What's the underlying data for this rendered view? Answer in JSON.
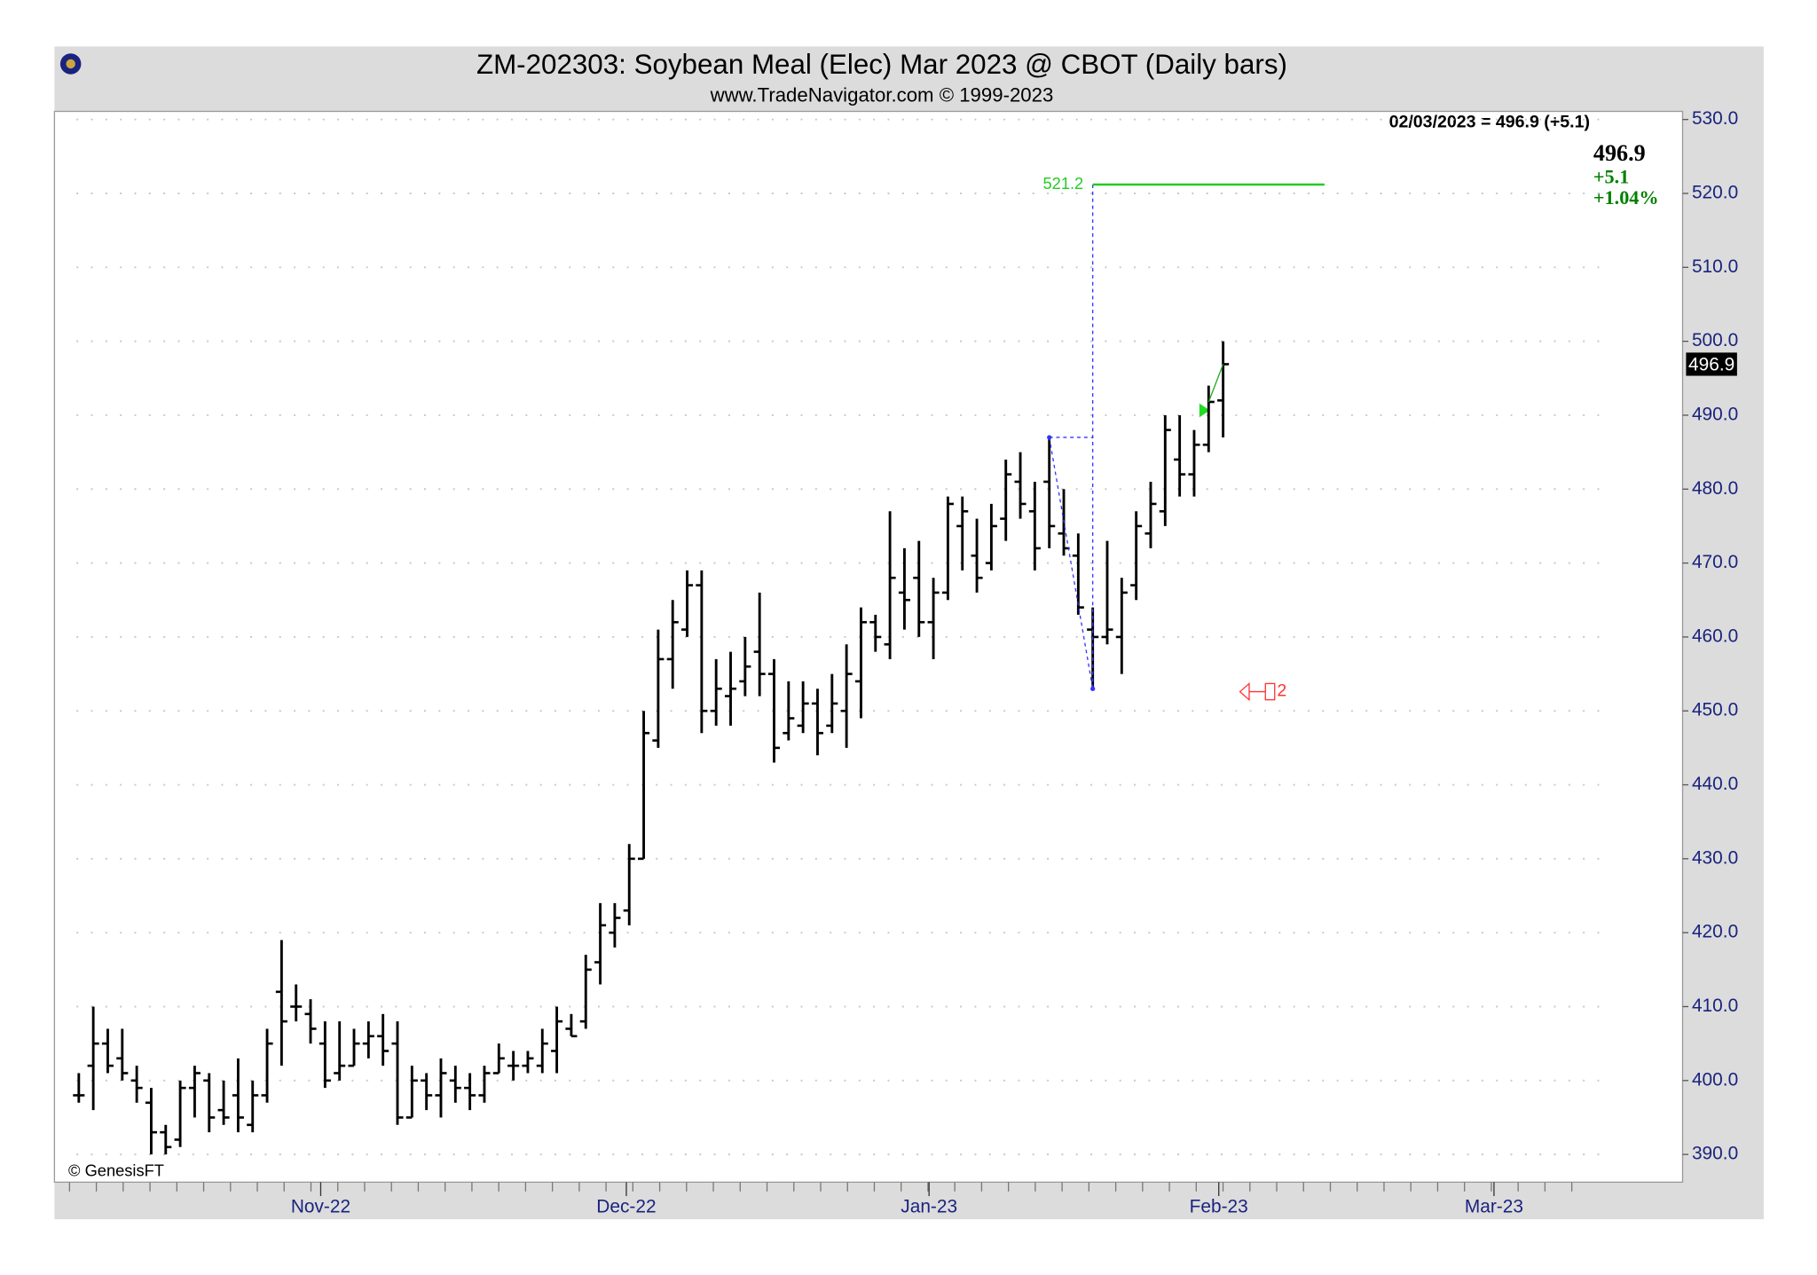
{
  "chart_data": {
    "type": "ohlc",
    "title": "ZM-202303:  Soybean Meal (Elec) Mar 2023 @ CBOT  (Daily bars)",
    "subtitle": "www.TradeNavigator.com © 1999-2023",
    "info": "02/03/2023 = 496.9 (+5.1)",
    "last": 496.9,
    "change": "+5.1",
    "change_pct": "+1.04%",
    "copyright": "© GenesisFT",
    "color": "#000000",
    "open": [
      398,
      402,
      405,
      403,
      400,
      397,
      393,
      392,
      399,
      400,
      396,
      398,
      394,
      398,
      412,
      410,
      409,
      405,
      401,
      402,
      405,
      406,
      405,
      395,
      400,
      398,
      400,
      399,
      398,
      401,
      402,
      402,
      402,
      404,
      407,
      408,
      416,
      420,
      423,
      430,
      446,
      457,
      461,
      467,
      450,
      452,
      454,
      458,
      455,
      447,
      448,
      451,
      448,
      450,
      454,
      462,
      459,
      466,
      468,
      462,
      466,
      475,
      471,
      470,
      476,
      481,
      477,
      481,
      474,
      471,
      461,
      460,
      460,
      467,
      474,
      477,
      484,
      482,
      486,
      492
    ],
    "high": [
      401,
      410,
      407,
      407,
      402,
      399,
      394,
      400,
      402,
      401,
      400,
      403,
      400,
      407,
      419,
      413,
      411,
      408,
      408,
      407,
      408,
      409,
      408,
      402,
      401,
      403,
      402,
      401,
      402,
      405,
      404,
      404,
      407,
      410,
      409,
      417,
      424,
      424,
      432,
      450,
      461,
      465,
      469,
      469,
      457,
      458,
      460,
      466,
      457,
      454,
      454,
      453,
      455,
      459,
      464,
      463,
      477,
      472,
      473,
      468,
      479,
      479,
      476,
      478,
      484,
      485,
      481,
      487,
      480,
      474,
      464,
      473,
      468,
      477,
      481,
      490,
      490,
      488,
      494,
      500
    ],
    "low": [
      397,
      396,
      401,
      400,
      397,
      390,
      390,
      391,
      395,
      393,
      394,
      393,
      393,
      397,
      402,
      408,
      405,
      399,
      400,
      402,
      403,
      402,
      394,
      395,
      396,
      395,
      397,
      396,
      397,
      401,
      400,
      401,
      401,
      401,
      406,
      407,
      413,
      418,
      421,
      430,
      445,
      453,
      460,
      447,
      448,
      448,
      452,
      452,
      443,
      446,
      447,
      444,
      447,
      445,
      449,
      458,
      457,
      461,
      460,
      457,
      465,
      469,
      466,
      469,
      473,
      476,
      469,
      472,
      471,
      463,
      453,
      459,
      455,
      465,
      472,
      475,
      479,
      479,
      485,
      487
    ],
    "close": [
      398,
      405,
      402,
      401,
      399,
      393,
      391,
      399,
      401,
      395,
      395,
      395,
      398,
      405,
      408,
      410,
      407,
      400,
      402,
      405,
      406,
      404,
      395,
      400,
      398,
      401,
      399,
      398,
      401,
      403,
      402,
      403,
      405,
      408,
      406,
      415,
      421,
      422,
      430,
      447,
      457,
      462,
      467,
      450,
      453,
      453,
      456,
      455,
      445,
      449,
      451,
      447,
      451,
      455,
      462,
      460,
      468,
      465,
      462,
      466,
      478,
      477,
      468,
      475,
      482,
      478,
      472,
      475,
      472,
      464,
      460,
      461,
      466,
      475,
      478,
      488,
      482,
      486,
      491.8,
      496.9
    ],
    "xlim": [
      -1.68,
      110.72
    ],
    "xticks": [
      {
        "value": 16.7,
        "label": "Nov-22"
      },
      {
        "value": 37.8,
        "label": "Dec-22"
      },
      {
        "value": 58.7,
        "label": "Jan-23"
      },
      {
        "value": 78.7,
        "label": "Feb-23"
      },
      {
        "value": 97.7,
        "label": "Mar-23"
      }
    ],
    "ylim": [
      386.25,
      531.1
    ],
    "yticks": [
      {
        "value": 390,
        "label": "390.0"
      },
      {
        "value": 400,
        "label": "400.0"
      },
      {
        "value": 410,
        "label": "410.0"
      },
      {
        "value": 420,
        "label": "420.0"
      },
      {
        "value": 430,
        "label": "430.0"
      },
      {
        "value": 440,
        "label": "440.0"
      },
      {
        "value": 450,
        "label": "450.0"
      },
      {
        "value": 460,
        "label": "460.0"
      },
      {
        "value": 470,
        "label": "470.0"
      },
      {
        "value": 480,
        "label": "480.0"
      },
      {
        "value": 490,
        "label": "490.0"
      },
      {
        "value": 500,
        "label": "500.0"
      },
      {
        "value": 510,
        "label": "510.0"
      },
      {
        "value": 520,
        "label": "520.0"
      },
      {
        "value": 530,
        "label": "530.0"
      }
    ],
    "grid": true,
    "projection_target": 521.2,
    "signal": {
      "label": "2",
      "value": 452.6
    }
  }
}
